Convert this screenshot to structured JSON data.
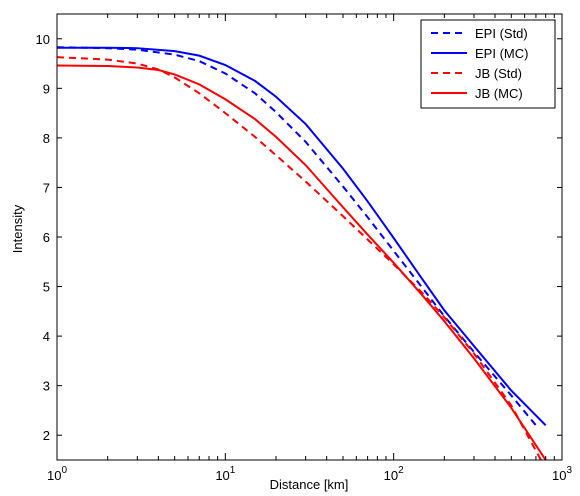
{
  "chart_data": {
    "type": "line",
    "title": "",
    "xlabel": "Distance [km]",
    "ylabel": "Intensity",
    "xscale": "log",
    "xlim": [
      1,
      1000
    ],
    "ylim": [
      1.5,
      10.5
    ],
    "x_ticks": [
      {
        "value": 1,
        "base": "10",
        "exp": "0"
      },
      {
        "value": 10,
        "base": "10",
        "exp": "1"
      },
      {
        "value": 100,
        "base": "10",
        "exp": "2"
      },
      {
        "value": 1000,
        "base": "10",
        "exp": "3"
      }
    ],
    "y_ticks": [
      2,
      3,
      4,
      5,
      6,
      7,
      8,
      9,
      10
    ],
    "grid": false,
    "legend_position": "top-right",
    "series": [
      {
        "name": "EPI (Std)",
        "color": "#0000ff",
        "dash": "dashed",
        "x": [
          1,
          2,
          3,
          5,
          7,
          10,
          15,
          20,
          30,
          50,
          70,
          100,
          150,
          200,
          300,
          500,
          700
        ],
        "y": [
          9.83,
          9.81,
          9.78,
          9.68,
          9.55,
          9.3,
          8.9,
          8.52,
          7.92,
          7.02,
          6.4,
          5.72,
          4.95,
          4.4,
          3.68,
          2.8,
          2.2
        ]
      },
      {
        "name": "EPI (MC)",
        "color": "#0000ff",
        "dash": "solid",
        "x": [
          1,
          2,
          3,
          5,
          7,
          10,
          15,
          20,
          30,
          50,
          70,
          100,
          150,
          200,
          300,
          500,
          800
        ],
        "y": [
          9.82,
          9.82,
          9.81,
          9.75,
          9.66,
          9.47,
          9.15,
          8.83,
          8.28,
          7.38,
          6.72,
          5.98,
          5.12,
          4.52,
          3.8,
          2.9,
          2.2
        ]
      },
      {
        "name": "JB (Std)",
        "color": "#ff0000",
        "dash": "dashed",
        "x": [
          1,
          2,
          3,
          4,
          5,
          7,
          10,
          15,
          20,
          30,
          50,
          70,
          100,
          150,
          200,
          300,
          500,
          750
        ],
        "y": [
          9.63,
          9.58,
          9.5,
          9.38,
          9.22,
          8.9,
          8.5,
          8.02,
          7.65,
          7.12,
          6.42,
          5.95,
          5.45,
          4.85,
          4.38,
          3.65,
          2.6,
          1.5
        ]
      },
      {
        "name": "JB (MC)",
        "color": "#ff0000",
        "dash": "solid",
        "x": [
          1,
          2,
          3,
          4,
          5,
          7,
          10,
          15,
          20,
          30,
          50,
          70,
          100,
          150,
          200,
          300,
          500,
          800
        ],
        "y": [
          9.46,
          9.45,
          9.42,
          9.37,
          9.28,
          9.08,
          8.78,
          8.38,
          8.02,
          7.45,
          6.6,
          6.05,
          5.48,
          4.8,
          4.3,
          3.55,
          2.55,
          1.5
        ]
      }
    ]
  }
}
